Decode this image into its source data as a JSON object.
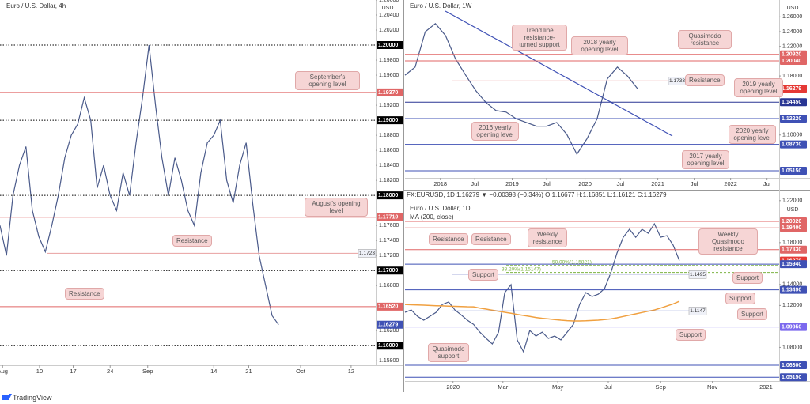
{
  "chart_data": [
    {
      "type": "line",
      "title": "Euro / U.S. Dollar, 4h",
      "currency": "USD",
      "series": [
        {
          "color": "#4a5a8a",
          "values": [
            1.176,
            1.172,
            1.18,
            1.184,
            1.1865,
            1.178,
            1.1745,
            1.1725,
            1.176,
            1.18,
            1.185,
            1.188,
            1.1895,
            1.193,
            1.19,
            1.181,
            1.184,
            1.18,
            1.178,
            1.183,
            1.18,
            1.187,
            1.193,
            1.2,
            1.192,
            1.185,
            1.18,
            1.185,
            1.182,
            1.178,
            1.176,
            1.183,
            1.187,
            1.188,
            1.19,
            1.182,
            1.179,
            1.184,
            1.187,
            1.179,
            1.172,
            1.168,
            1.164,
            1.1628
          ]
        }
      ],
      "xlim": [
        0,
        58
      ],
      "xticks": [
        {
          "value": 0.4,
          "label": "Aug"
        },
        {
          "value": 6.1,
          "label": "10"
        },
        {
          "value": 11.3,
          "label": "17"
        },
        {
          "value": 17,
          "label": "24"
        },
        {
          "value": 22.8,
          "label": "Sep"
        },
        {
          "value": 33,
          "label": "14"
        },
        {
          "value": 38.4,
          "label": "21"
        },
        {
          "value": 46.4,
          "label": "Oct"
        },
        {
          "value": 54.2,
          "label": "12"
        }
      ],
      "ylim": [
        1.1574,
        1.206
      ],
      "yticks": [
        {
          "value": 1.206,
          "label": "1.20600"
        },
        {
          "value": 1.204,
          "label": "1.20400"
        },
        {
          "value": 1.202,
          "label": "1.20200"
        },
        {
          "value": 1.198,
          "label": "1.19800"
        },
        {
          "value": 1.196,
          "label": "1.19600"
        },
        {
          "value": 1.192,
          "label": "1.19200"
        },
        {
          "value": 1.188,
          "label": "1.18800"
        },
        {
          "value": 1.186,
          "label": "1.18600"
        },
        {
          "value": 1.184,
          "label": "1.18400"
        },
        {
          "value": 1.182,
          "label": "1.18200"
        },
        {
          "value": 1.176,
          "label": "1.17600"
        },
        {
          "value": 1.174,
          "label": "1.17400"
        },
        {
          "value": 1.172,
          "label": "1.17200"
        },
        {
          "value": 1.168,
          "label": "1.16800"
        },
        {
          "value": 1.162,
          "label": "1.16200"
        },
        {
          "value": 1.158,
          "label": "1.15800"
        }
      ],
      "levels": [
        {
          "value": 1.2,
          "label": "1.20000",
          "color": "#000000",
          "style": "dotted"
        },
        {
          "value": 1.1937,
          "label": "1.19370",
          "color": "#e06666",
          "style": "solid"
        },
        {
          "value": 1.19,
          "label": "1.19000",
          "color": "#000000",
          "style": "dotted"
        },
        {
          "value": 1.18,
          "label": "1.18000",
          "color": "#000000",
          "style": "dotted"
        },
        {
          "value": 1.1771,
          "label": "1.17710",
          "color": "#e06666",
          "style": "solid"
        },
        {
          "value": 1.17,
          "label": "1.17000",
          "color": "#000000",
          "style": "dotted"
        },
        {
          "value": 1.1652,
          "label": "1.16520",
          "color": "#e06666",
          "style": "solid"
        },
        {
          "value": 1.16279,
          "label": "1.16279",
          "color": "#3f51b5",
          "style": "none"
        },
        {
          "value": 1.16,
          "label": "1.16000",
          "color": "#000000",
          "style": "dotted"
        }
      ],
      "price_tags": [
        {
          "value": 1.1723,
          "label": "1.1723",
          "color": "#e8a0a0"
        }
      ],
      "annotations": [
        "September's opening level",
        "August's opening level",
        "Resistance",
        "Resistance"
      ]
    },
    {
      "type": "line",
      "title": "Euro / U.S. Dollar, 1W",
      "currency": "USD",
      "series": [
        {
          "color": "#4a5a8a",
          "values": [
            1.181,
            1.192,
            1.24,
            1.251,
            1.235,
            1.203,
            1.181,
            1.16,
            1.144,
            1.133,
            1.131,
            1.122,
            1.117,
            1.112,
            1.112,
            1.117,
            1.101,
            1.074,
            1.095,
            1.122,
            1.176,
            1.192,
            1.18,
            1.1628
          ]
        }
      ],
      "xlim": [
        0,
        37
      ],
      "xticks": [
        {
          "value": 3.5,
          "label": "2018"
        },
        {
          "value": 6.9,
          "label": "Jul"
        },
        {
          "value": 10.6,
          "label": "2019"
        },
        {
          "value": 14,
          "label": "Jul"
        },
        {
          "value": 17.8,
          "label": "2020"
        },
        {
          "value": 21.3,
          "label": "Jul"
        },
        {
          "value": 25,
          "label": "2021"
        },
        {
          "value": 28.6,
          "label": "Jul"
        },
        {
          "value": 32.2,
          "label": "2022"
        },
        {
          "value": 35.8,
          "label": "Jul"
        }
      ],
      "ylim": [
        1.0419,
        1.2829
      ],
      "yticks": [
        {
          "value": 1.26,
          "label": "1.26000"
        },
        {
          "value": 1.24,
          "label": "1.24000"
        },
        {
          "value": 1.22,
          "label": "1.22000"
        },
        {
          "value": 1.18,
          "label": "1.18000"
        },
        {
          "value": 1.1,
          "label": "1.10000"
        }
      ],
      "levels": [
        {
          "value": 1.2092,
          "label": "1.20920",
          "color": "#e06666",
          "style": "solid"
        },
        {
          "value": 1.2004,
          "label": "1.20040",
          "color": "#e06666",
          "style": "solid"
        },
        {
          "value": 1.16279,
          "label": "1.16279",
          "color": "#e53935",
          "style": "none"
        },
        {
          "value": 1.1445,
          "label": "1.14450",
          "color": "#283593",
          "style": "solid"
        },
        {
          "value": 1.1222,
          "label": "1.12220",
          "color": "#3f51b5",
          "style": "solid"
        },
        {
          "value": 1.0873,
          "label": "1.08730",
          "color": "#3f51b5",
          "style": "solid"
        },
        {
          "value": 1.0515,
          "label": "1.05150",
          "color": "#3f51b5",
          "style": "solid"
        }
      ],
      "price_tags": [
        {
          "value": 1.1733,
          "label": "1.1733",
          "color": "#e06666"
        }
      ],
      "annotations": [
        "Trend line resistance-turned support",
        "2018 yearly opening level",
        "Quasimodo resistance",
        "Resistance",
        "2019 yearly opening level",
        "2016 yearly opening level",
        "2020 yearly opening level",
        "2017 yearly opening level"
      ]
    },
    {
      "type": "line",
      "title": "Euro / U.S. Dollar, 1D",
      "currency": "USD",
      "info_line": "FX:EURUSD, 1D  1.16279 ▼ −0.00398 (−0.34%)  O:1.16677  H:1.16851  L:1.16121  C:1.16279",
      "series": [
        {
          "color": "#4a5a8a",
          "values": [
            1.1135,
            1.1157,
            1.1097,
            1.106,
            1.1097,
            1.1135,
            1.121,
            1.1233,
            1.1157,
            1.111,
            1.106,
            1.102,
            1.0946,
            1.0886,
            1.0833,
            1.0946,
            1.1323,
            1.1399,
            1.0871,
            1.0758,
            1.0961,
            1.0908,
            1.0946,
            1.0886,
            1.0908,
            1.0871,
            1.0946,
            1.102,
            1.121,
            1.1323,
            1.1285,
            1.1308,
            1.1361,
            1.1512,
            1.17,
            1.1851,
            1.1927,
            1.1851,
            1.1927,
            1.1889,
            1.1979,
            1.1851,
            1.1866,
            1.1776,
            1.1628
          ]
        },
        {
          "name": "MA (200, close)",
          "color": "#f0a040",
          "values": [
            1.121,
            1.1207,
            1.1205,
            1.1203,
            1.12,
            1.1198,
            1.1196,
            1.1194,
            1.1192,
            1.119,
            1.1188,
            1.1187,
            1.1175,
            1.1165,
            1.1155,
            1.1145,
            1.1135,
            1.1125,
            1.1115,
            1.1105,
            1.1095,
            1.1085,
            1.1078,
            1.1072,
            1.1066,
            1.106,
            1.1055,
            1.1052,
            1.1052,
            1.1054,
            1.1057,
            1.106,
            1.1066,
            1.1072,
            1.1082,
            1.1095,
            1.1108,
            1.112,
            1.1133,
            1.1145,
            1.1157,
            1.1175,
            1.1195,
            1.1215,
            1.124
          ]
        }
      ],
      "xlim": [
        0,
        60
      ],
      "xticks": [
        {
          "value": 7.7,
          "label": "2020"
        },
        {
          "value": 15.7,
          "label": "Mar"
        },
        {
          "value": 24.5,
          "label": "May"
        },
        {
          "value": 32.6,
          "label": "Jul"
        },
        {
          "value": 41,
          "label": "Sep"
        },
        {
          "value": 49.3,
          "label": "Nov"
        },
        {
          "value": 57.9,
          "label": "2021"
        }
      ],
      "ylim": [
        1.0479,
        1.2206
      ],
      "yticks": [
        {
          "value": 1.22,
          "label": "1.22000"
        },
        {
          "value": 1.18,
          "label": "1.18000"
        },
        {
          "value": 1.14,
          "label": "1.14000"
        },
        {
          "value": 1.12,
          "label": "1.12000"
        },
        {
          "value": 1.08,
          "label": "1.08000"
        }
      ],
      "levels": [
        {
          "value": 1.2002,
          "label": "1.20020",
          "color": "#e06666",
          "style": "solid"
        },
        {
          "value": 1.194,
          "label": "1.19400",
          "color": "#e06666",
          "style": "solid"
        },
        {
          "value": 1.1733,
          "label": "1.17330",
          "color": "#e06666",
          "style": "solid"
        },
        {
          "value": 1.16279,
          "label": "1.16279",
          "color": "#e53935",
          "style": "none"
        },
        {
          "value": 1.1594,
          "label": "1.15940",
          "color": "#3f51b5",
          "style": "solid"
        },
        {
          "value": 1.1349,
          "label": "1.13490",
          "color": "#3f51b5",
          "style": "solid"
        },
        {
          "value": 1.0995,
          "label": "1.09950",
          "color": "#7b68ee",
          "style": "solid"
        },
        {
          "value": 1.063,
          "label": "1.06300",
          "color": "#3f51b5",
          "style": "solid"
        },
        {
          "value": 1.0515,
          "label": "1.05150",
          "color": "#3f51b5",
          "style": "solid"
        }
      ],
      "price_tags": [
        {
          "value": 1.1495,
          "label": "1.1495",
          "color": "#c5cae9"
        },
        {
          "value": 1.1147,
          "label": "1.1147",
          "color": "#3f51b5"
        }
      ],
      "fib_levels": [
        {
          "value": 1.15147,
          "label": "38.20%(1.15147)"
        },
        {
          "value": 1.15821,
          "label": "50.00%(1.15821)"
        }
      ],
      "annotations": [
        "Resistance",
        "Resistance",
        "Weekly resistance",
        "Weekly Quasimodo resistance",
        "Support",
        "Support",
        "Support",
        "Support",
        "Support",
        "Quasimodo support"
      ]
    }
  ],
  "footer": {
    "brand": "TradingView"
  }
}
